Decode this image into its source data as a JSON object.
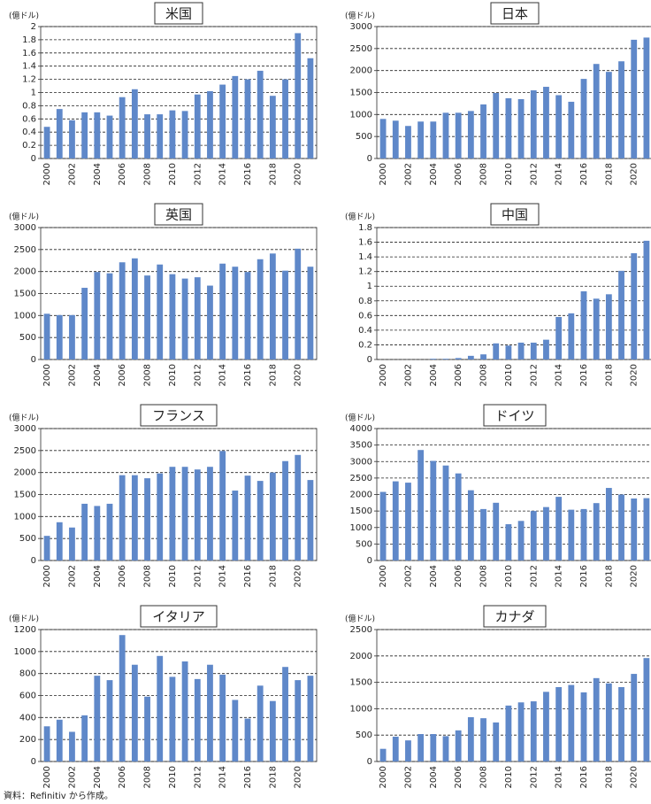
{
  "chart_data": [
    {
      "type": "bar",
      "title": "米国",
      "y_label": "(億ドル)",
      "categories": [
        "2000",
        null,
        "2002",
        null,
        "2004",
        null,
        "2006",
        null,
        "2008",
        null,
        "2010",
        null,
        "2012",
        null,
        "2014",
        null,
        "2016",
        null,
        "2018",
        null,
        "2020",
        null
      ],
      "values": [
        0.48,
        0.75,
        0.58,
        0.7,
        0.7,
        0.65,
        0.93,
        1.05,
        0.67,
        0.67,
        0.73,
        0.72,
        0.97,
        1.02,
        1.12,
        1.25,
        1.2,
        1.33,
        0.95,
        1.2,
        1.9,
        1.52
      ],
      "color": "#5f88c9",
      "ylim": [
        0,
        2
      ],
      "yticks": [
        0,
        0.2,
        0.4,
        0.6,
        0.8,
        1,
        1.2,
        1.4,
        1.6,
        1.8,
        2
      ],
      "grid": true
    },
    {
      "type": "bar",
      "title": "日本",
      "y_label": "(億ドル)",
      "categories": [
        "2000",
        null,
        "2002",
        null,
        "2004",
        null,
        "2006",
        null,
        "2008",
        null,
        "2010",
        null,
        "2012",
        null,
        "2014",
        null,
        "2016",
        null,
        "2018",
        null,
        "2020",
        null
      ],
      "values": [
        900,
        860,
        740,
        840,
        840,
        1040,
        1040,
        1080,
        1230,
        1490,
        1370,
        1350,
        1550,
        1630,
        1440,
        1290,
        1810,
        2150,
        1970,
        2210,
        2700,
        2750
      ],
      "color": "#5f88c9",
      "ylim": [
        0,
        3000
      ],
      "yticks": [
        0,
        500,
        1000,
        1500,
        2000,
        2500,
        3000
      ],
      "grid": true
    },
    {
      "type": "bar",
      "title": "英国",
      "y_label": "(億ドル)",
      "categories": [
        "2000",
        null,
        "2002",
        null,
        "2004",
        null,
        "2006",
        null,
        "2008",
        null,
        "2010",
        null,
        "2012",
        null,
        "2014",
        null,
        "2016",
        null,
        "2018",
        null,
        "2020",
        null
      ],
      "values": [
        1040,
        1010,
        1010,
        1630,
        1990,
        1960,
        2210,
        2300,
        1910,
        2160,
        1940,
        1840,
        1870,
        1680,
        2180,
        2110,
        1990,
        2280,
        2410,
        2020,
        2520,
        2110
      ],
      "color": "#5f88c9",
      "ylim": [
        0,
        3000
      ],
      "yticks": [
        0,
        500,
        1000,
        1500,
        2000,
        2500,
        3000
      ],
      "grid": true
    },
    {
      "type": "bar",
      "title": "中国",
      "y_label": "(億ドル)",
      "categories": [
        "2000",
        null,
        "2002",
        null,
        "2004",
        null,
        "2006",
        null,
        "2008",
        null,
        "2010",
        null,
        "2012",
        null,
        "2014",
        null,
        "2016",
        null,
        "2018",
        null,
        "2020",
        null
      ],
      "values": [
        0,
        0,
        0,
        0,
        0.01,
        0.01,
        0.02,
        0.05,
        0.07,
        0.22,
        0.19,
        0.23,
        0.23,
        0.27,
        0.58,
        0.63,
        0.93,
        0.83,
        0.89,
        1.21,
        1.45,
        1.62
      ],
      "color": "#5f88c9",
      "ylim": [
        0,
        1.8
      ],
      "yticks": [
        0,
        0.2,
        0.4,
        0.6,
        0.8,
        1,
        1.2,
        1.4,
        1.6,
        1.8
      ],
      "grid": true
    },
    {
      "type": "bar",
      "title": "フランス",
      "y_label": "(億ドル)",
      "categories": [
        "2000",
        null,
        "2002",
        null,
        "2004",
        null,
        "2006",
        null,
        "2008",
        null,
        "2010",
        null,
        "2012",
        null,
        "2014",
        null,
        "2016",
        null,
        "2018",
        null,
        "2020",
        null
      ],
      "values": [
        560,
        870,
        750,
        1290,
        1240,
        1290,
        1940,
        1940,
        1870,
        1980,
        2130,
        2130,
        2070,
        2130,
        2490,
        1590,
        1930,
        1810,
        2000,
        2260,
        2400,
        1830
      ],
      "color": "#5f88c9",
      "ylim": [
        0,
        3000
      ],
      "yticks": [
        0,
        500,
        1000,
        1500,
        2000,
        2500,
        3000
      ],
      "grid": true
    },
    {
      "type": "bar",
      "title": "ドイツ",
      "y_label": "(億ドル)",
      "categories": [
        "2000",
        null,
        "2002",
        null,
        "2004",
        null,
        "2006",
        null,
        "2008",
        null,
        "2010",
        null,
        "2012",
        null,
        "2014",
        null,
        "2016",
        null,
        "2018",
        null,
        "2020",
        null
      ],
      "values": [
        2080,
        2400,
        2360,
        3350,
        3020,
        2880,
        2640,
        2130,
        1560,
        1750,
        1100,
        1200,
        1500,
        1620,
        1930,
        1540,
        1560,
        1740,
        2200,
        2000,
        1880,
        1890
      ],
      "color": "#5f88c9",
      "ylim": [
        0,
        4000
      ],
      "yticks": [
        0,
        500,
        1000,
        1500,
        2000,
        2500,
        3000,
        3500,
        4000
      ],
      "grid": true
    },
    {
      "type": "bar",
      "title": "イタリア",
      "y_label": "(億ドル)",
      "categories": [
        "2000",
        null,
        "2002",
        null,
        "2004",
        null,
        "2006",
        null,
        "2008",
        null,
        "2010",
        null,
        "2012",
        null,
        "2014",
        null,
        "2016",
        null,
        "2018",
        null,
        "2020",
        null
      ],
      "values": [
        320,
        380,
        270,
        420,
        780,
        740,
        1150,
        880,
        590,
        960,
        770,
        910,
        750,
        880,
        790,
        560,
        390,
        690,
        550,
        860,
        740,
        780
      ],
      "color": "#5f88c9",
      "ylim": [
        0,
        1200
      ],
      "yticks": [
        0,
        200,
        400,
        600,
        800,
        1000,
        1200
      ],
      "grid": true
    },
    {
      "type": "bar",
      "title": "カナダ",
      "y_label": "(億ドル)",
      "categories": [
        "2000",
        null,
        "2002",
        null,
        "2004",
        null,
        "2006",
        null,
        "2008",
        null,
        "2010",
        null,
        "2012",
        null,
        "2014",
        null,
        "2016",
        null,
        "2018",
        null,
        "2020",
        null
      ],
      "values": [
        240,
        470,
        400,
        520,
        520,
        480,
        590,
        840,
        820,
        740,
        1060,
        1120,
        1140,
        1320,
        1410,
        1450,
        1310,
        1580,
        1480,
        1410,
        1660,
        1960
      ],
      "color": "#5f88c9",
      "ylim": [
        0,
        2500
      ],
      "yticks": [
        0,
        500,
        1000,
        1500,
        2000,
        2500
      ],
      "grid": true
    }
  ],
  "source": "資料：Refinitiv から作成。"
}
